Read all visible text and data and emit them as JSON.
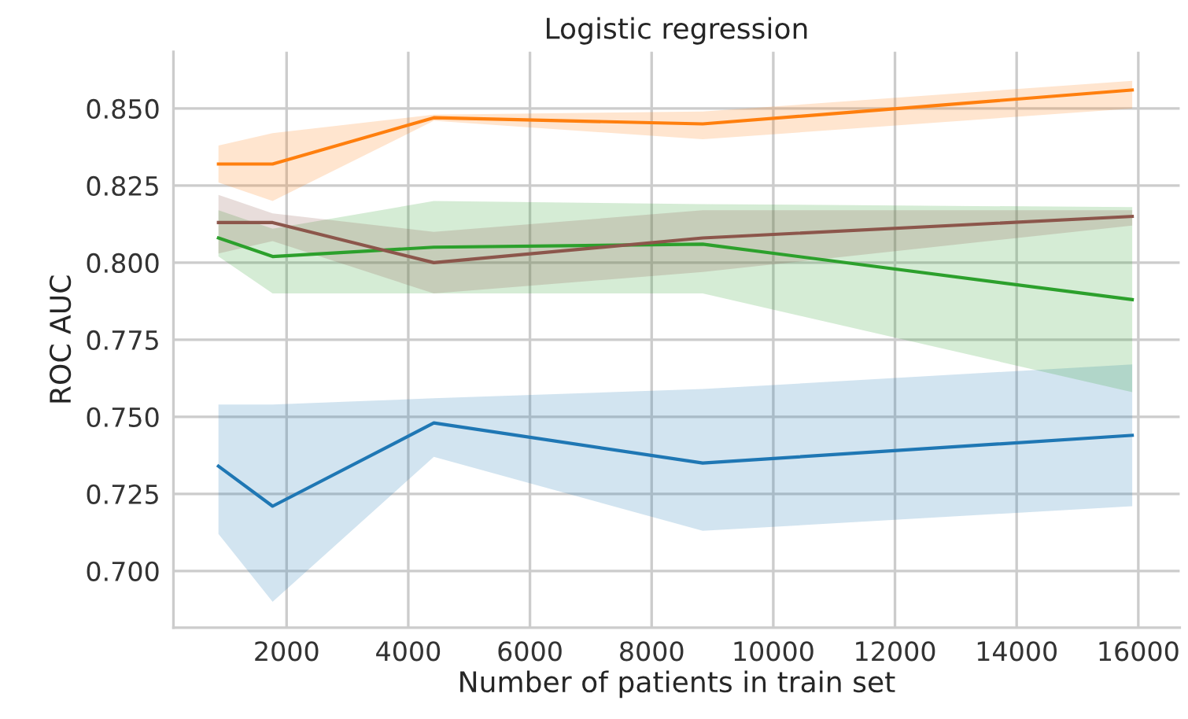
{
  "chart_data": {
    "type": "line",
    "title": "Logistic regression",
    "xlabel": "Number of patients in train set",
    "ylabel": "ROC AUC",
    "x": [
      880,
      1770,
      4420,
      8840,
      15900
    ],
    "series": [
      {
        "color": "#1f77b4",
        "values": [
          0.734,
          0.721,
          0.748,
          0.735,
          0.744
        ],
        "lower": [
          0.712,
          0.69,
          0.737,
          0.713,
          0.721
        ],
        "upper": [
          0.754,
          0.754,
          0.756,
          0.759,
          0.767
        ]
      },
      {
        "color": "#ff7f0e",
        "values": [
          0.832,
          0.832,
          0.847,
          0.845,
          0.856
        ],
        "lower": [
          0.826,
          0.82,
          0.846,
          0.84,
          0.85
        ],
        "upper": [
          0.838,
          0.842,
          0.848,
          0.849,
          0.859
        ]
      },
      {
        "color": "#2ca02c",
        "values": [
          0.808,
          0.802,
          0.805,
          0.806,
          0.788
        ],
        "lower": [
          0.802,
          0.79,
          0.79,
          0.79,
          0.758
        ],
        "upper": [
          0.817,
          0.811,
          0.82,
          0.819,
          0.818
        ]
      },
      {
        "color": "#8c564b",
        "values": [
          0.813,
          0.813,
          0.8,
          0.808,
          0.815
        ],
        "lower": [
          0.803,
          0.807,
          0.79,
          0.797,
          0.812
        ],
        "upper": [
          0.822,
          0.816,
          0.81,
          0.817,
          0.817
        ]
      }
    ],
    "xlim": [
      140,
      16680
    ],
    "ylim": [
      0.6816,
      0.8684
    ],
    "xticks": [
      2000,
      4000,
      6000,
      8000,
      10000,
      12000,
      14000,
      16000
    ],
    "yticks": [
      {
        "value": 0.7,
        "label": "0.700"
      },
      {
        "value": 0.725,
        "label": "0.725"
      },
      {
        "value": 0.75,
        "label": "0.750"
      },
      {
        "value": 0.775,
        "label": "0.775"
      },
      {
        "value": 0.8,
        "label": "0.800"
      },
      {
        "value": 0.825,
        "label": "0.825"
      },
      {
        "value": 0.85,
        "label": "0.850"
      }
    ],
    "grid": true,
    "marker": "none",
    "line_style": "solid"
  }
}
